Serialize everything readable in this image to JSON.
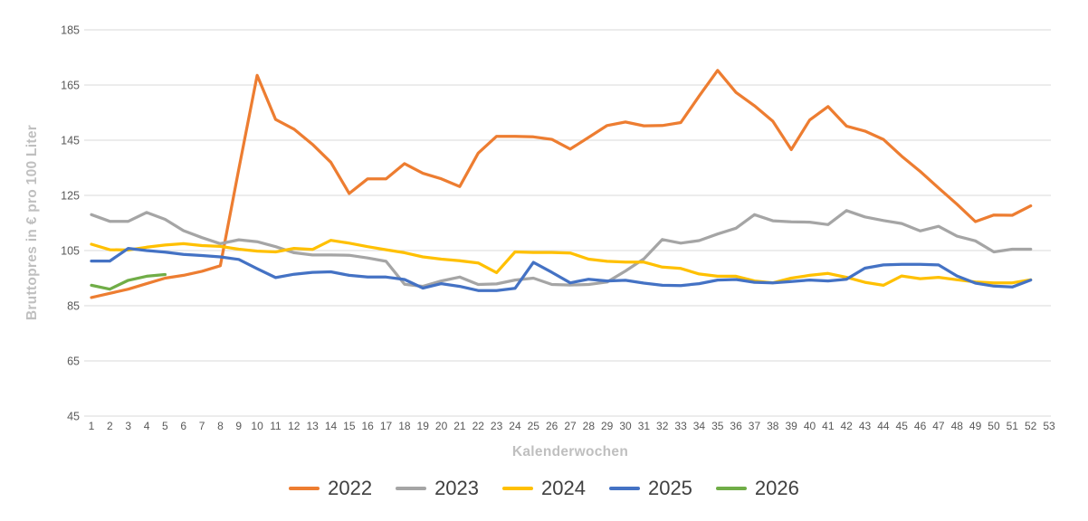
{
  "chart_data": {
    "type": "line",
    "title": "",
    "xlabel": "Kalenderwochen",
    "ylabel": "Bruttopres in € pro 100 Liter",
    "ylim": [
      45,
      185
    ],
    "ytick_step": 20,
    "yticks": [
      45,
      65,
      85,
      105,
      125,
      145,
      165,
      185
    ],
    "x_ticks": [
      1,
      2,
      3,
      4,
      5,
      6,
      7,
      8,
      9,
      10,
      11,
      12,
      13,
      14,
      15,
      16,
      17,
      18,
      19,
      20,
      21,
      22,
      23,
      24,
      25,
      26,
      27,
      28,
      29,
      30,
      31,
      32,
      33,
      34,
      35,
      36,
      37,
      38,
      39,
      40,
      41,
      42,
      43,
      44,
      45,
      46,
      47,
      48,
      49,
      50,
      51,
      52,
      53
    ],
    "grid": true,
    "legend_position": "bottom",
    "styles": {
      "grid_color": "#D9D9D9",
      "tick_label_color": "#595959",
      "axis_title_color": "#BFBFBF",
      "legend_text_color": "#404040"
    },
    "series": [
      {
        "name": "2022",
        "color": "#ED7D31",
        "start_week": 1,
        "values": [
          88,
          89.5,
          91,
          93,
          95,
          96,
          97.5,
          99.5,
          134.5,
          168.5,
          152.5,
          149,
          143.5,
          137,
          125.7,
          131,
          131,
          136.5,
          133,
          131,
          128.2,
          140.3,
          146.4,
          146.4,
          146.2,
          145.3,
          141.8,
          146,
          150.3,
          151.6,
          150.2,
          150.3,
          151.4,
          161,
          170.3,
          162.3,
          157.5,
          151.9,
          141.6,
          152.3,
          157.2,
          150.1,
          148.3,
          145.3,
          139.2,
          133.7,
          127.7,
          121.8,
          115.5,
          117.9,
          117.8,
          121.2
        ]
      },
      {
        "name": "2023",
        "color": "#A5A5A5",
        "start_week": 1,
        "values": [
          118,
          115.6,
          115.6,
          118.8,
          116.3,
          112.2,
          109.7,
          107.5,
          108.9,
          108.2,
          106.4,
          104.2,
          103.4,
          103.4,
          103.3,
          102.3,
          101.1,
          92.8,
          92,
          94,
          95.4,
          92.7,
          92.9,
          94.3,
          95,
          92.7,
          92.5,
          92.7,
          93.6,
          97.6,
          102,
          109,
          107.7,
          108.6,
          111,
          113.1,
          118,
          115.8,
          115.4,
          115.3,
          114.4,
          119.5,
          117.2,
          115.9,
          114.8,
          112.1,
          113.8,
          110.2,
          108.5,
          104.5,
          105.5,
          105.5
        ]
      },
      {
        "name": "2024",
        "color": "#FFC000",
        "start_week": 1,
        "values": [
          107.3,
          105.3,
          105.2,
          106.2,
          107,
          107.5,
          106.8,
          106.5,
          105.5,
          104.8,
          104.5,
          105.8,
          105.4,
          108.7,
          107.7,
          106.4,
          105.3,
          104.2,
          102.7,
          101.9,
          101.3,
          100.5,
          97,
          104.5,
          104.3,
          104.3,
          104.1,
          101.9,
          101.1,
          100.8,
          100.8,
          99,
          98.5,
          96.5,
          95.7,
          95.7,
          94,
          93.3,
          95,
          96,
          96.7,
          95.3,
          93.5,
          92.4,
          95.8,
          94.8,
          95.3,
          94.4,
          93.6,
          93.3,
          93.3,
          94.4
        ]
      },
      {
        "name": "2025",
        "color": "#4472C4",
        "start_week": 1,
        "values": [
          101.2,
          101.2,
          105.8,
          105,
          104.4,
          103.6,
          103.2,
          102.7,
          101.8,
          98.4,
          95.2,
          96.4,
          97.1,
          97.3,
          96,
          95.4,
          95.4,
          94.5,
          91.4,
          93,
          92,
          90.5,
          90.5,
          91.3,
          100.7,
          97.1,
          93.3,
          94.6,
          94,
          94.2,
          93.2,
          92.4,
          92.3,
          93,
          94.3,
          94.5,
          93.5,
          93.3,
          93.8,
          94.3,
          94,
          94.6,
          98.6,
          99.8,
          100,
          100,
          99.8,
          95.8,
          93.2,
          92.1,
          91.8,
          94.3
        ]
      },
      {
        "name": "2026",
        "color": "#70AD47",
        "start_week": 1,
        "values": [
          92.4,
          91,
          94.2,
          95.7,
          96.3
        ]
      }
    ]
  }
}
